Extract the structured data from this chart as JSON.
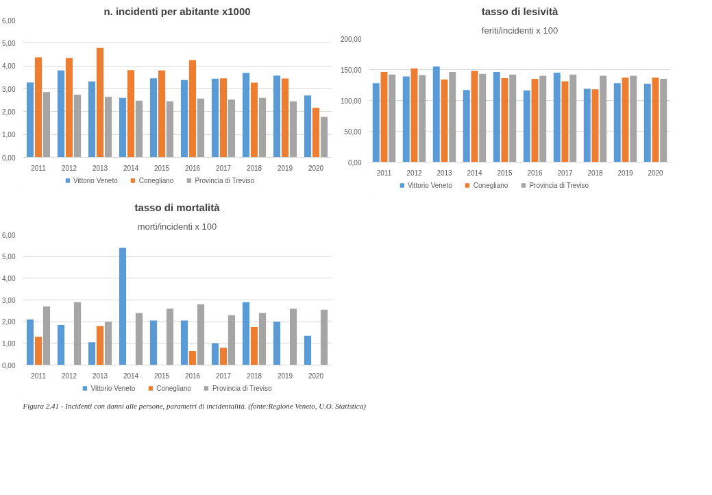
{
  "chart_data": [
    {
      "type": "bar",
      "title": "n. incidenti per abitante x1000",
      "categories": [
        "2011",
        "2012",
        "2013",
        "2014",
        "2015",
        "2016",
        "2017",
        "2018",
        "2019",
        "2020"
      ],
      "series": [
        {
          "name": "Vittorio Veneto",
          "color": "#5b9bd5",
          "values": [
            3.28,
            3.8,
            3.32,
            2.6,
            3.46,
            3.38,
            3.44,
            3.7,
            3.58,
            2.71
          ]
        },
        {
          "name": "Conegliano",
          "color": "#ed7d31",
          "values": [
            4.38,
            4.34,
            4.79,
            3.82,
            3.8,
            4.25,
            3.46,
            3.27,
            3.45,
            2.17
          ]
        },
        {
          "name": "Provincia di Treviso",
          "color": "#a5a5a5",
          "values": [
            2.86,
            2.74,
            2.65,
            2.48,
            2.45,
            2.57,
            2.53,
            2.6,
            2.45,
            1.77
          ]
        }
      ],
      "ylim": [
        0,
        6
      ],
      "yticks": [
        {
          "value": 0,
          "label": "0,00"
        },
        {
          "value": 1,
          "label": "1,00"
        },
        {
          "value": 2,
          "label": "2,00"
        },
        {
          "value": 3,
          "label": "3,00"
        },
        {
          "value": 4,
          "label": "4,00"
        },
        {
          "value": 5,
          "label": "5,00"
        },
        {
          "value": 6,
          "label": "6,00"
        }
      ],
      "grid": "y",
      "legend": "bottom"
    },
    {
      "type": "bar",
      "title": "tasso di lesività",
      "subtitle": "feriti/incidenti x 100",
      "categories": [
        "2011",
        "2012",
        "2013",
        "2014",
        "2015",
        "2016",
        "2017",
        "2018",
        "2019",
        "2020"
      ],
      "series": [
        {
          "name": "Vittorio Veneto",
          "color": "#5b9bd5",
          "values": [
            128,
            139,
            155,
            117,
            146,
            116,
            145,
            119,
            128,
            127
          ]
        },
        {
          "name": "Conegliano",
          "color": "#ed7d31",
          "values": [
            146,
            152,
            134,
            148,
            136,
            135,
            131,
            118,
            137,
            137
          ]
        },
        {
          "name": "Provincia di Treviso",
          "color": "#a5a5a5",
          "values": [
            142,
            141,
            146,
            143,
            142,
            140,
            142,
            140,
            140,
            135
          ]
        }
      ],
      "ylim": [
        0,
        200
      ],
      "yticks": [
        {
          "value": 0,
          "label": "0,00"
        },
        {
          "value": 50,
          "label": "50,00"
        },
        {
          "value": 100,
          "label": "100,00"
        },
        {
          "value": 150,
          "label": "150,00"
        },
        {
          "value": 200,
          "label": "200,00"
        }
      ],
      "grid": "y",
      "legend": "bottom"
    },
    {
      "type": "bar",
      "title": "tasso di mortalità",
      "subtitle": "morti/incidenti x 100",
      "categories": [
        "2011",
        "2012",
        "2013",
        "2014",
        "2015",
        "2016",
        "2017",
        "2018",
        "2019",
        "2020"
      ],
      "series": [
        {
          "name": "Vittorio Veneto",
          "color": "#5b9bd5",
          "values": [
            2.1,
            1.85,
            1.05,
            5.4,
            2.05,
            2.05,
            1.0,
            2.9,
            2.0,
            1.35
          ]
        },
        {
          "name": "Conegliano",
          "color": "#ed7d31",
          "values": [
            1.3,
            null,
            1.8,
            null,
            null,
            0.65,
            0.8,
            1.75,
            null,
            null
          ]
        },
        {
          "name": "Provincia di Treviso",
          "color": "#a5a5a5",
          "values": [
            2.7,
            2.9,
            2.0,
            2.4,
            2.6,
            2.8,
            2.3,
            2.4,
            2.6,
            2.55
          ]
        }
      ],
      "ylim": [
        0,
        6
      ],
      "yticks": [
        {
          "value": 0,
          "label": "0,00"
        },
        {
          "value": 1,
          "label": "1,00"
        },
        {
          "value": 2,
          "label": "2,00"
        },
        {
          "value": 3,
          "label": "3,00"
        },
        {
          "value": 4,
          "label": "4,00"
        },
        {
          "value": 5,
          "label": "5,00"
        },
        {
          "value": 6,
          "label": "6,00"
        }
      ],
      "grid": "y",
      "legend": "bottom",
      "annotations": [
        "Figura 2.41 - Incidenti con danni alle persone, parametri di incidentalità. (fonte:Regione Veneto, U.O. Statistica)"
      ]
    }
  ]
}
